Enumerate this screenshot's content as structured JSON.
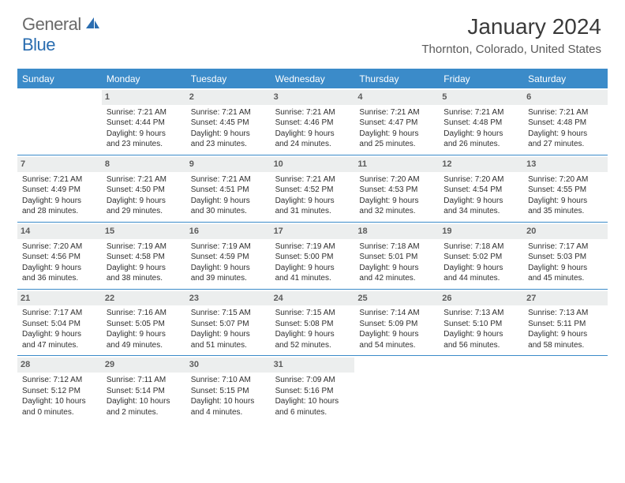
{
  "logo": {
    "general": "General",
    "blue": "Blue"
  },
  "title": "January 2024",
  "location": "Thornton, Colorado, United States",
  "colors": {
    "header_bg": "#3b8bc9",
    "daybar_bg": "#eceeee",
    "text": "#333333",
    "logo_gray": "#6a6a6a",
    "logo_blue": "#2a6db0"
  },
  "days_of_week": [
    "Sunday",
    "Monday",
    "Tuesday",
    "Wednesday",
    "Thursday",
    "Friday",
    "Saturday"
  ],
  "weeks": [
    [
      null,
      {
        "n": "1",
        "sr": "Sunrise: 7:21 AM",
        "ss": "Sunset: 4:44 PM",
        "d1": "Daylight: 9 hours",
        "d2": "and 23 minutes."
      },
      {
        "n": "2",
        "sr": "Sunrise: 7:21 AM",
        "ss": "Sunset: 4:45 PM",
        "d1": "Daylight: 9 hours",
        "d2": "and 23 minutes."
      },
      {
        "n": "3",
        "sr": "Sunrise: 7:21 AM",
        "ss": "Sunset: 4:46 PM",
        "d1": "Daylight: 9 hours",
        "d2": "and 24 minutes."
      },
      {
        "n": "4",
        "sr": "Sunrise: 7:21 AM",
        "ss": "Sunset: 4:47 PM",
        "d1": "Daylight: 9 hours",
        "d2": "and 25 minutes."
      },
      {
        "n": "5",
        "sr": "Sunrise: 7:21 AM",
        "ss": "Sunset: 4:48 PM",
        "d1": "Daylight: 9 hours",
        "d2": "and 26 minutes."
      },
      {
        "n": "6",
        "sr": "Sunrise: 7:21 AM",
        "ss": "Sunset: 4:48 PM",
        "d1": "Daylight: 9 hours",
        "d2": "and 27 minutes."
      }
    ],
    [
      {
        "n": "7",
        "sr": "Sunrise: 7:21 AM",
        "ss": "Sunset: 4:49 PM",
        "d1": "Daylight: 9 hours",
        "d2": "and 28 minutes."
      },
      {
        "n": "8",
        "sr": "Sunrise: 7:21 AM",
        "ss": "Sunset: 4:50 PM",
        "d1": "Daylight: 9 hours",
        "d2": "and 29 minutes."
      },
      {
        "n": "9",
        "sr": "Sunrise: 7:21 AM",
        "ss": "Sunset: 4:51 PM",
        "d1": "Daylight: 9 hours",
        "d2": "and 30 minutes."
      },
      {
        "n": "10",
        "sr": "Sunrise: 7:21 AM",
        "ss": "Sunset: 4:52 PM",
        "d1": "Daylight: 9 hours",
        "d2": "and 31 minutes."
      },
      {
        "n": "11",
        "sr": "Sunrise: 7:20 AM",
        "ss": "Sunset: 4:53 PM",
        "d1": "Daylight: 9 hours",
        "d2": "and 32 minutes."
      },
      {
        "n": "12",
        "sr": "Sunrise: 7:20 AM",
        "ss": "Sunset: 4:54 PM",
        "d1": "Daylight: 9 hours",
        "d2": "and 34 minutes."
      },
      {
        "n": "13",
        "sr": "Sunrise: 7:20 AM",
        "ss": "Sunset: 4:55 PM",
        "d1": "Daylight: 9 hours",
        "d2": "and 35 minutes."
      }
    ],
    [
      {
        "n": "14",
        "sr": "Sunrise: 7:20 AM",
        "ss": "Sunset: 4:56 PM",
        "d1": "Daylight: 9 hours",
        "d2": "and 36 minutes."
      },
      {
        "n": "15",
        "sr": "Sunrise: 7:19 AM",
        "ss": "Sunset: 4:58 PM",
        "d1": "Daylight: 9 hours",
        "d2": "and 38 minutes."
      },
      {
        "n": "16",
        "sr": "Sunrise: 7:19 AM",
        "ss": "Sunset: 4:59 PM",
        "d1": "Daylight: 9 hours",
        "d2": "and 39 minutes."
      },
      {
        "n": "17",
        "sr": "Sunrise: 7:19 AM",
        "ss": "Sunset: 5:00 PM",
        "d1": "Daylight: 9 hours",
        "d2": "and 41 minutes."
      },
      {
        "n": "18",
        "sr": "Sunrise: 7:18 AM",
        "ss": "Sunset: 5:01 PM",
        "d1": "Daylight: 9 hours",
        "d2": "and 42 minutes."
      },
      {
        "n": "19",
        "sr": "Sunrise: 7:18 AM",
        "ss": "Sunset: 5:02 PM",
        "d1": "Daylight: 9 hours",
        "d2": "and 44 minutes."
      },
      {
        "n": "20",
        "sr": "Sunrise: 7:17 AM",
        "ss": "Sunset: 5:03 PM",
        "d1": "Daylight: 9 hours",
        "d2": "and 45 minutes."
      }
    ],
    [
      {
        "n": "21",
        "sr": "Sunrise: 7:17 AM",
        "ss": "Sunset: 5:04 PM",
        "d1": "Daylight: 9 hours",
        "d2": "and 47 minutes."
      },
      {
        "n": "22",
        "sr": "Sunrise: 7:16 AM",
        "ss": "Sunset: 5:05 PM",
        "d1": "Daylight: 9 hours",
        "d2": "and 49 minutes."
      },
      {
        "n": "23",
        "sr": "Sunrise: 7:15 AM",
        "ss": "Sunset: 5:07 PM",
        "d1": "Daylight: 9 hours",
        "d2": "and 51 minutes."
      },
      {
        "n": "24",
        "sr": "Sunrise: 7:15 AM",
        "ss": "Sunset: 5:08 PM",
        "d1": "Daylight: 9 hours",
        "d2": "and 52 minutes."
      },
      {
        "n": "25",
        "sr": "Sunrise: 7:14 AM",
        "ss": "Sunset: 5:09 PM",
        "d1": "Daylight: 9 hours",
        "d2": "and 54 minutes."
      },
      {
        "n": "26",
        "sr": "Sunrise: 7:13 AM",
        "ss": "Sunset: 5:10 PM",
        "d1": "Daylight: 9 hours",
        "d2": "and 56 minutes."
      },
      {
        "n": "27",
        "sr": "Sunrise: 7:13 AM",
        "ss": "Sunset: 5:11 PM",
        "d1": "Daylight: 9 hours",
        "d2": "and 58 minutes."
      }
    ],
    [
      {
        "n": "28",
        "sr": "Sunrise: 7:12 AM",
        "ss": "Sunset: 5:12 PM",
        "d1": "Daylight: 10 hours",
        "d2": "and 0 minutes."
      },
      {
        "n": "29",
        "sr": "Sunrise: 7:11 AM",
        "ss": "Sunset: 5:14 PM",
        "d1": "Daylight: 10 hours",
        "d2": "and 2 minutes."
      },
      {
        "n": "30",
        "sr": "Sunrise: 7:10 AM",
        "ss": "Sunset: 5:15 PM",
        "d1": "Daylight: 10 hours",
        "d2": "and 4 minutes."
      },
      {
        "n": "31",
        "sr": "Sunrise: 7:09 AM",
        "ss": "Sunset: 5:16 PM",
        "d1": "Daylight: 10 hours",
        "d2": "and 6 minutes."
      },
      null,
      null,
      null
    ]
  ]
}
